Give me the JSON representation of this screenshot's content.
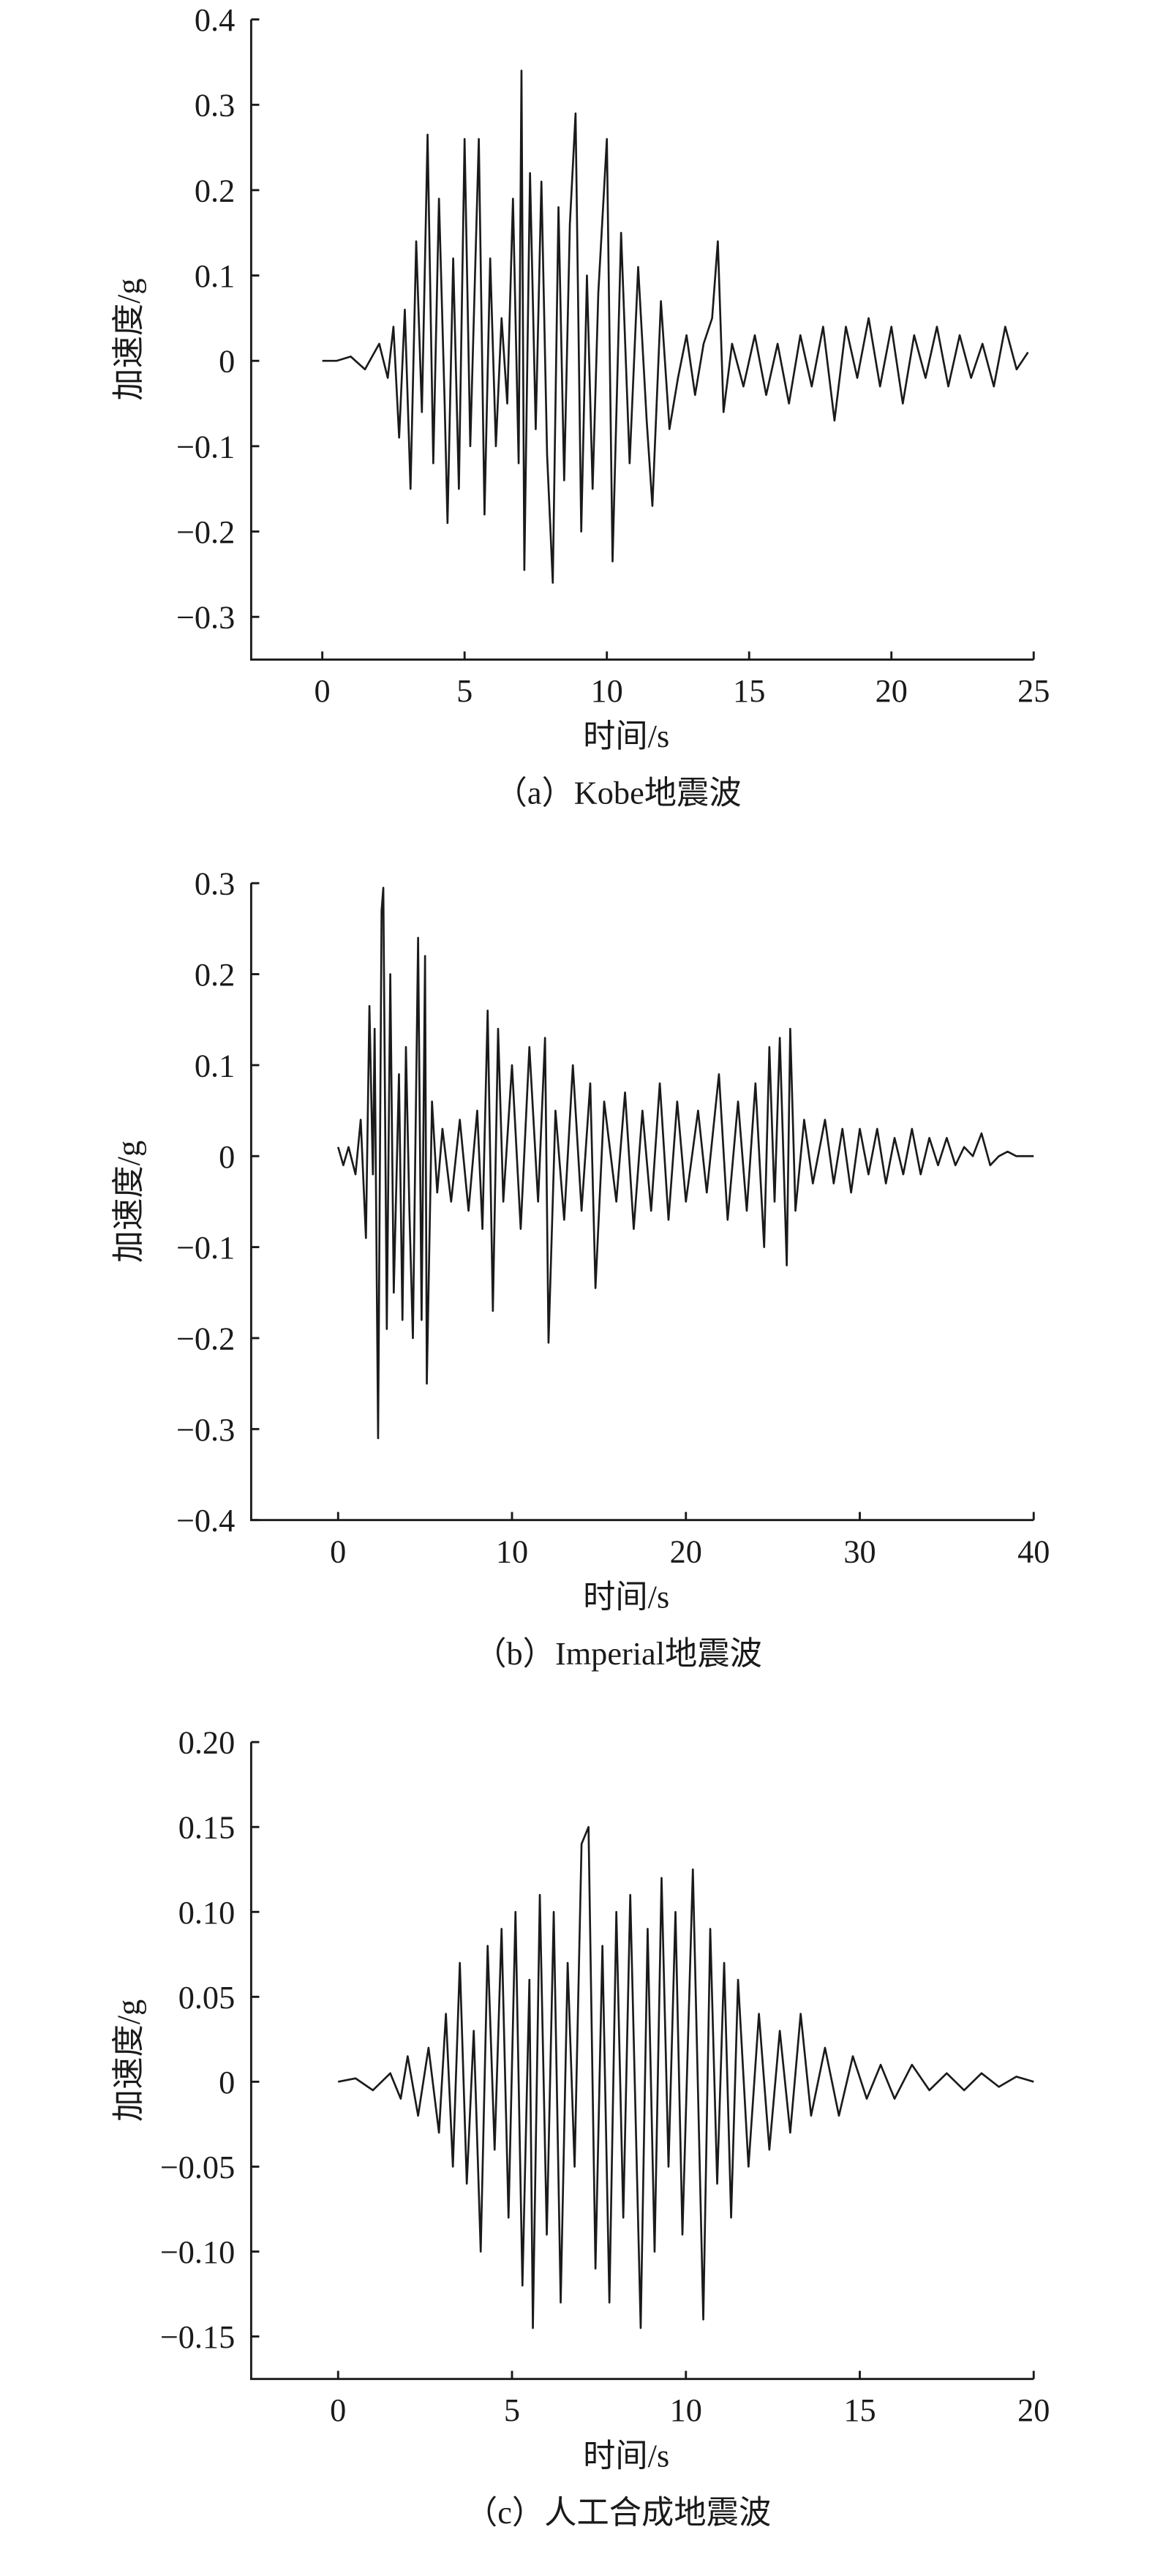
{
  "chart_data": [
    {
      "type": "line",
      "title": "（a）Kobe地震波",
      "x_label": "时间/s",
      "y_label": "加速度/g",
      "color": "#1a1a1a",
      "xlim": [
        -2.5,
        25
      ],
      "xticks": [
        0,
        5,
        10,
        15,
        20,
        25
      ],
      "ylim": [
        -0.35,
        0.4
      ],
      "yticks": [
        0.4,
        0.3,
        0.2,
        0.1,
        0,
        {
          "value": -0.1,
          "label": "−0.1"
        },
        {
          "value": -0.2,
          "label": "−0.2"
        },
        {
          "value": -0.3,
          "label": "−0.3"
        }
      ],
      "x": [
        0,
        0.5,
        1,
        1.5,
        2,
        2.3,
        2.5,
        2.7,
        2.9,
        3.1,
        3.3,
        3.5,
        3.7,
        3.9,
        4.1,
        4.3,
        4.4,
        4.6,
        4.8,
        5.0,
        5.2,
        5.5,
        5.7,
        5.9,
        6.1,
        6.3,
        6.5,
        6.7,
        6.9,
        7.0,
        7.1,
        7.3,
        7.5,
        7.7,
        7.9,
        8.1,
        8.3,
        8.5,
        8.7,
        8.9,
        9.1,
        9.3,
        9.5,
        9.7,
        10.0,
        10.2,
        10.5,
        10.8,
        11.1,
        11.4,
        11.6,
        11.9,
        12.2,
        12.5,
        12.8,
        13.1,
        13.4,
        13.7,
        13.9,
        14.1,
        14.4,
        14.8,
        15.2,
        15.6,
        16.0,
        16.4,
        16.8,
        17.2,
        17.6,
        18.0,
        18.4,
        18.8,
        19.2,
        19.6,
        20.0,
        20.4,
        20.8,
        21.2,
        21.6,
        22.0,
        22.4,
        22.8,
        23.2,
        23.6,
        24.0,
        24.4,
        24.8
      ],
      "values": [
        0,
        0,
        0.005,
        -0.01,
        0.02,
        -0.02,
        0.04,
        -0.09,
        0.06,
        -0.15,
        0.14,
        -0.06,
        0.265,
        -0.12,
        0.19,
        -0.05,
        -0.19,
        0.12,
        -0.15,
        0.26,
        -0.1,
        0.26,
        -0.18,
        0.12,
        -0.1,
        0.05,
        -0.05,
        0.19,
        -0.12,
        0.34,
        -0.245,
        0.22,
        -0.08,
        0.21,
        -0.11,
        -0.26,
        0.18,
        -0.14,
        0.16,
        0.29,
        -0.2,
        0.1,
        -0.15,
        0.08,
        0.26,
        -0.235,
        0.15,
        -0.12,
        0.11,
        -0.07,
        -0.17,
        0.07,
        -0.08,
        -0.02,
        0.03,
        -0.04,
        0.02,
        0.05,
        0.14,
        -0.06,
        0.02,
        -0.03,
        0.03,
        -0.04,
        0.02,
        -0.05,
        0.03,
        -0.03,
        0.04,
        -0.07,
        0.04,
        -0.02,
        0.05,
        -0.03,
        0.04,
        -0.05,
        0.03,
        -0.02,
        0.04,
        -0.03,
        0.03,
        -0.02,
        0.02,
        -0.03,
        0.04,
        -0.01,
        0.01
      ]
    },
    {
      "type": "line",
      "title": "（b）Imperial地震波",
      "x_label": "时间/s",
      "y_label": "加速度/g",
      "color": "#1a1a1a",
      "xlim": [
        -5,
        40
      ],
      "xticks": [
        0,
        10,
        20,
        30,
        40
      ],
      "ylim": [
        -0.4,
        0.3
      ],
      "yticks": [
        0.3,
        0.2,
        0.1,
        0,
        {
          "value": -0.1,
          "label": "−0.1"
        },
        {
          "value": -0.2,
          "label": "−0.2"
        },
        {
          "value": -0.3,
          "label": "−0.3"
        },
        {
          "value": -0.4,
          "label": "−0.4"
        }
      ],
      "x": [
        0,
        0.3,
        0.6,
        1.0,
        1.3,
        1.6,
        1.8,
        2.0,
        2.1,
        2.3,
        2.5,
        2.6,
        2.8,
        3.0,
        3.2,
        3.5,
        3.7,
        3.9,
        4.1,
        4.3,
        4.6,
        4.8,
        5.0,
        5.1,
        5.4,
        5.7,
        6.0,
        6.5,
        7.0,
        7.5,
        8.0,
        8.3,
        8.6,
        8.9,
        9.2,
        9.5,
        10.0,
        10.5,
        11.0,
        11.5,
        11.9,
        12.1,
        12.5,
        13.0,
        13.5,
        14.0,
        14.5,
        14.8,
        15.3,
        16,
        16.5,
        17,
        17.5,
        18,
        18.5,
        19,
        19.5,
        20,
        20.7,
        21.2,
        21.9,
        22.4,
        23,
        23.5,
        24,
        24.5,
        24.8,
        25.1,
        25.4,
        25.8,
        26.0,
        26.3,
        26.8,
        27.3,
        28,
        28.5,
        29,
        29.5,
        30,
        30.5,
        31,
        31.5,
        32,
        32.5,
        33,
        33.5,
        34,
        34.5,
        35,
        35.5,
        36,
        36.5,
        37,
        37.5,
        38,
        38.5,
        39,
        40
      ],
      "values": [
        0.01,
        -0.01,
        0.01,
        -0.02,
        0.04,
        -0.09,
        0.165,
        -0.02,
        0.14,
        -0.31,
        0.27,
        0.295,
        -0.19,
        0.2,
        -0.15,
        0.09,
        -0.18,
        0.12,
        -0.06,
        -0.2,
        0.24,
        -0.18,
        0.22,
        -0.25,
        0.06,
        -0.04,
        0.03,
        -0.05,
        0.04,
        -0.06,
        0.05,
        -0.08,
        0.16,
        -0.17,
        0.14,
        -0.05,
        0.1,
        -0.08,
        0.12,
        -0.05,
        0.13,
        -0.205,
        0.05,
        -0.07,
        0.1,
        -0.06,
        0.08,
        -0.145,
        0.06,
        -0.05,
        0.07,
        -0.08,
        0.05,
        -0.06,
        0.08,
        -0.07,
        0.06,
        -0.05,
        0.05,
        -0.04,
        0.09,
        -0.07,
        0.06,
        -0.06,
        0.08,
        -0.1,
        0.12,
        -0.05,
        0.13,
        -0.12,
        0.14,
        -0.06,
        0.04,
        -0.03,
        0.04,
        -0.03,
        0.03,
        -0.04,
        0.03,
        -0.02,
        0.03,
        -0.03,
        0.02,
        -0.02,
        0.03,
        -0.02,
        0.02,
        -0.01,
        0.02,
        -0.01,
        0.01,
        0,
        0.025,
        -0.01,
        0,
        0.005,
        0,
        0
      ]
    },
    {
      "type": "line",
      "title": "（c）人工合成地震波",
      "x_label": "时间/s",
      "y_label": "加速度/g",
      "color": "#1a1a1a",
      "xlim": [
        -2.5,
        20
      ],
      "xticks": [
        0,
        5,
        10,
        15,
        20
      ],
      "ylim": [
        -0.175,
        0.2
      ],
      "yticks": [
        {
          "value": 0.2,
          "label": "0.20"
        },
        {
          "value": 0.15,
          "label": "0.15"
        },
        {
          "value": 0.1,
          "label": "0.10"
        },
        {
          "value": 0.05,
          "label": "0.05"
        },
        0,
        {
          "value": -0.05,
          "label": "−0.05"
        },
        {
          "value": -0.1,
          "label": "−0.10"
        },
        {
          "value": -0.15,
          "label": "−0.15"
        }
      ],
      "x": [
        0,
        0.5,
        1,
        1.5,
        1.8,
        2.0,
        2.3,
        2.6,
        2.9,
        3.1,
        3.3,
        3.5,
        3.7,
        3.9,
        4.1,
        4.3,
        4.5,
        4.7,
        4.9,
        5.1,
        5.3,
        5.5,
        5.6,
        5.8,
        6.0,
        6.2,
        6.4,
        6.6,
        6.8,
        7.0,
        7.2,
        7.4,
        7.6,
        7.8,
        8.0,
        8.2,
        8.4,
        8.6,
        8.7,
        8.9,
        9.1,
        9.3,
        9.5,
        9.7,
        9.9,
        10.2,
        10.5,
        10.7,
        10.9,
        11.1,
        11.3,
        11.5,
        11.8,
        12.1,
        12.4,
        12.7,
        13.0,
        13.3,
        13.6,
        14.0,
        14.4,
        14.8,
        15.2,
        15.6,
        16,
        16.5,
        17,
        17.5,
        18,
        18.5,
        19,
        19.5,
        20
      ],
      "values": [
        0,
        0.002,
        -0.005,
        0.005,
        -0.01,
        0.015,
        -0.02,
        0.02,
        -0.03,
        0.04,
        -0.05,
        0.07,
        -0.06,
        0.03,
        -0.1,
        0.08,
        -0.04,
        0.09,
        -0.08,
        0.1,
        -0.12,
        0.06,
        -0.145,
        0.11,
        -0.09,
        0.1,
        -0.13,
        0.07,
        -0.05,
        0.14,
        0.15,
        -0.11,
        0.08,
        -0.13,
        0.1,
        -0.08,
        0.11,
        -0.06,
        -0.145,
        0.09,
        -0.1,
        0.12,
        -0.05,
        0.1,
        -0.09,
        0.125,
        -0.14,
        0.09,
        -0.06,
        0.07,
        -0.08,
        0.06,
        -0.05,
        0.04,
        -0.04,
        0.03,
        -0.03,
        0.04,
        -0.02,
        0.02,
        -0.02,
        0.015,
        -0.01,
        0.01,
        -0.01,
        0.01,
        -0.005,
        0.005,
        -0.005,
        0.005,
        -0.003,
        0.003,
        0
      ]
    }
  ]
}
